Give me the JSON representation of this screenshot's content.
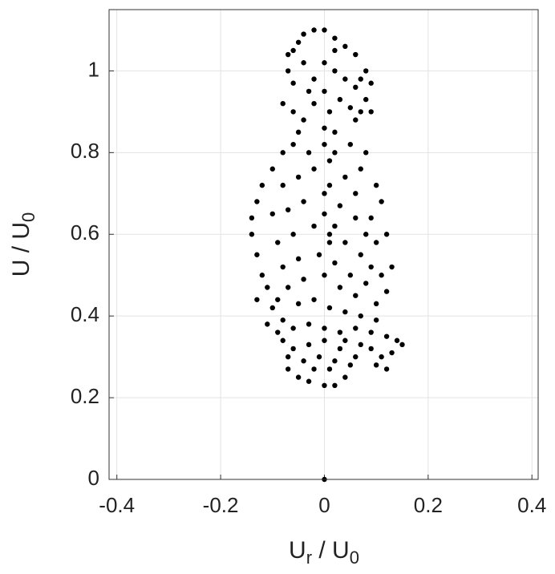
{
  "chart_data": {
    "type": "scatter",
    "xlabel": [
      "U",
      "r",
      " / U",
      "0"
    ],
    "ylabel": [
      "U / U",
      "0"
    ],
    "xlim": [
      -0.415,
      0.412
    ],
    "ylim": [
      0,
      1.15
    ],
    "xticks": [
      -0.4,
      -0.2,
      0,
      0.2,
      0.4
    ],
    "yticks": [
      0,
      0.2,
      0.4,
      0.6,
      0.8,
      1
    ],
    "grid": true,
    "color": "#000000",
    "x": [
      -0.06,
      -0.05,
      -0.04,
      -0.02,
      0,
      0.02,
      0.04,
      0.06,
      0.08,
      0.09,
      0.08,
      0.07,
      -0.07,
      -0.07,
      -0.06,
      -0.08,
      -0.06,
      -0.04,
      0,
      0.02,
      0.04,
      0.06,
      -0.02,
      0,
      0.03,
      0.05,
      -0.03,
      0.01,
      -0.02,
      0.06,
      0.09,
      -0.04,
      0.02,
      0.07,
      -0.05,
      -0.08,
      -0.1,
      -0.12,
      -0.13,
      -0.14,
      -0.14,
      -0.13,
      -0.12,
      -0.11,
      -0.13,
      -0.1,
      -0.11,
      -0.06,
      -0.03,
      0,
      0.02,
      0.05,
      0.08,
      0.07,
      0.1,
      0.11,
      0.09,
      0.12,
      0.1,
      0.13,
      0.11,
      0.12,
      0.1,
      -0.08,
      -0.05,
      -0.02,
      0.01,
      0.04,
      0.06,
      -0.1,
      -0.07,
      -0.04,
      0,
      0.03,
      0.06,
      0.08,
      -0.09,
      -0.06,
      -0.02,
      0.01,
      0.04,
      0.07,
      0.09,
      -0.08,
      -0.05,
      -0.01,
      0.02,
      0.05,
      0.08,
      -0.07,
      -0.04,
      0,
      0.03,
      0.06,
      -0.09,
      -0.05,
      -0.02,
      0.01,
      0.04,
      0.07,
      0.1,
      0,
      0.01,
      0.02,
      0,
      0.01,
      0.02,
      -0.08,
      -0.06,
      -0.03,
      0,
      0.03,
      0.06,
      0.09,
      0.12,
      0.14,
      0.15,
      0.13,
      0.11,
      0.09,
      -0.08,
      -0.06,
      -0.07,
      -0.07,
      -0.05,
      -0.03,
      0,
      0.02,
      0.04,
      0.05,
      0.06,
      0.03,
      0,
      -0.03,
      -0.04,
      -0.02,
      0.01,
      0.02,
      -0.01,
      0.04,
      0.07,
      0.1,
      0.12,
      -0.09,
      0
    ],
    "y": [
      1.05,
      1.07,
      1.09,
      1.1,
      1.1,
      1.08,
      1.06,
      1.04,
      1,
      0.97,
      0.93,
      0.9,
      1.04,
      1,
      0.97,
      0.92,
      0.9,
      0.88,
      1.02,
      1,
      0.98,
      0.96,
      0.98,
      0.95,
      0.93,
      0.91,
      0.95,
      0.9,
      0.92,
      0.88,
      0.9,
      1.02,
      1.05,
      0.98,
      0.85,
      0.8,
      0.76,
      0.72,
      0.68,
      0.64,
      0.6,
      0.55,
      0.5,
      0.47,
      0.44,
      0.42,
      0.38,
      0.82,
      0.8,
      0.82,
      0.85,
      0.82,
      0.8,
      0.76,
      0.72,
      0.68,
      0.64,
      0.6,
      0.58,
      0.52,
      0.5,
      0.46,
      0.43,
      0.72,
      0.74,
      0.76,
      0.78,
      0.74,
      0.7,
      0.65,
      0.66,
      0.68,
      0.7,
      0.67,
      0.64,
      0.6,
      0.58,
      0.6,
      0.62,
      0.6,
      0.58,
      0.55,
      0.52,
      0.52,
      0.54,
      0.55,
      0.53,
      0.5,
      0.48,
      0.47,
      0.49,
      0.5,
      0.47,
      0.45,
      0.44,
      0.43,
      0.44,
      0.42,
      0.41,
      0.4,
      0.39,
      0.65,
      0.72,
      0.8,
      0.86,
      0.58,
      0.62,
      0.39,
      0.37,
      0.38,
      0.37,
      0.36,
      0.37,
      0.36,
      0.35,
      0.34,
      0.33,
      0.31,
      0.3,
      0.32,
      0.34,
      0.32,
      0.3,
      0.27,
      0.25,
      0.24,
      0.23,
      0.23,
      0.25,
      0.28,
      0.3,
      0.32,
      0.34,
      0.33,
      0.29,
      0.27,
      0.27,
      0.29,
      0.3,
      0.34,
      0.33,
      0.28,
      0.27,
      0.36,
      0
    ]
  }
}
